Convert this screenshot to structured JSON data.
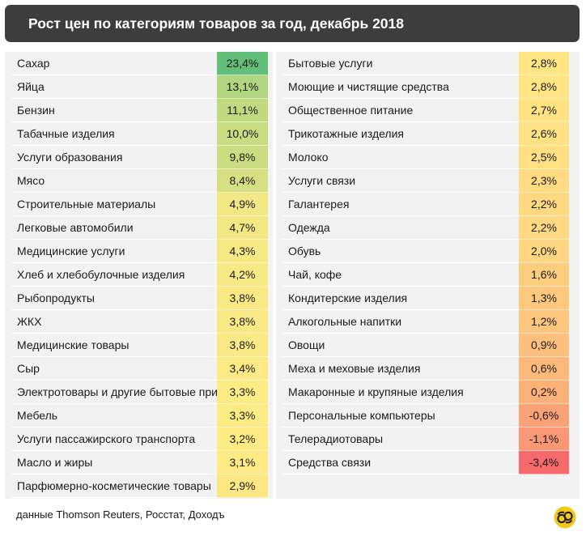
{
  "header": {
    "title": "Рост цен по категориям товаров за год, декабрь 2018"
  },
  "footer": {
    "source": "данные Thomson Reuters, Росстат, Доходъ"
  },
  "logo": {
    "icon": "dohod-logo-icon"
  },
  "colors": {
    "title_bar": "#3d3d3d",
    "panel_bg": "#f2f2f2",
    "scale_high": "#63be7b",
    "scale_mid": "#ffeb84",
    "scale_low": "#f8696b",
    "logo_bg": "#f2c81a"
  },
  "chart_data": {
    "type": "table",
    "title": "Рост цен по категориям товаров за год, декабрь 2018",
    "columns": [
      {
        "categories": [
          "Сахар",
          "Яйца",
          "Бензин",
          "Табачные изделия",
          "Услуги образования",
          "Мясо",
          "Строительные материалы",
          "Легковые автомобили",
          "Медицинские услуги",
          "Хлеб и хлебобулочные изделия",
          "Рыбопродукты",
          "ЖКХ",
          "Медицинские товары",
          "Сыр",
          "Электротовары и другие бытовые приб",
          "Мебель",
          "Услуги пассажирского транспорта",
          "Масло и жиры",
          "Парфюмерно-косметические товары"
        ],
        "labels": [
          "23,4%",
          "13,1%",
          "11,1%",
          "10,0%",
          "9,8%",
          "8,4%",
          "4,9%",
          "4,7%",
          "4,3%",
          "4,2%",
          "3,8%",
          "3,8%",
          "3,8%",
          "3,4%",
          "3,3%",
          "3,3%",
          "3,2%",
          "3,1%",
          "2,9%"
        ],
        "values": [
          23.4,
          13.1,
          11.1,
          10.0,
          9.8,
          8.4,
          4.9,
          4.7,
          4.3,
          4.2,
          3.8,
          3.8,
          3.8,
          3.4,
          3.3,
          3.3,
          3.2,
          3.1,
          2.9
        ]
      },
      {
        "categories": [
          "Бытовые услуги",
          "Моющие и чистящие средства",
          "Общественное питание",
          "Трикотажные изделия",
          "Молоко",
          "Услуги связи",
          "Галантерея",
          "Одежда",
          "Обувь",
          "Чай, кофе",
          "Кондитерские изделия",
          "Алкогольные напитки",
          "Овощи",
          "Меха и меховые изделия",
          "Макаронные и крупяные изделия",
          "Персональные компьютеры",
          "Телерадиотовары",
          "Средства связи"
        ],
        "labels": [
          "2,8%",
          "2,8%",
          "2,7%",
          "2,6%",
          "2,5%",
          "2,3%",
          "2,2%",
          "2,2%",
          "2,0%",
          "1,6%",
          "1,3%",
          "1,2%",
          "0,9%",
          "0,6%",
          "0,2%",
          "-0,6%",
          "-1,1%",
          "-3,4%"
        ],
        "values": [
          2.8,
          2.8,
          2.7,
          2.6,
          2.5,
          2.3,
          2.2,
          2.2,
          2.0,
          1.6,
          1.3,
          1.2,
          0.9,
          0.6,
          0.2,
          -0.6,
          -1.1,
          -3.4
        ]
      }
    ],
    "color_scale": {
      "min": -3.4,
      "mid": 3.1,
      "max": 23.4,
      "colors": [
        "#f8696b",
        "#ffeb84",
        "#63be7b"
      ]
    }
  }
}
